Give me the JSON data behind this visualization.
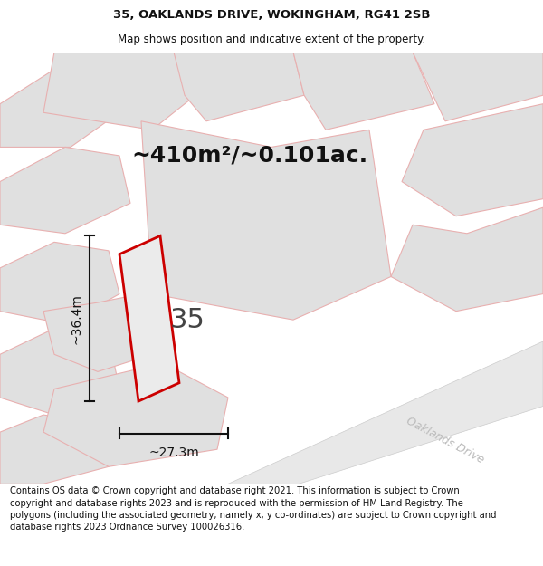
{
  "title_line1": "35, OAKLANDS DRIVE, WOKINGHAM, RG41 2SB",
  "title_line2": "Map shows position and indicative extent of the property.",
  "area_text": "~410m²/~0.101ac.",
  "label_35": "35",
  "dim_height": "~36.4m",
  "dim_width": "~27.3m",
  "road_label": "Oaklands Drive",
  "footer_text": "Contains OS data © Crown copyright and database right 2021. This information is subject to Crown copyright and database rights 2023 and is reproduced with the permission of HM Land Registry. The polygons (including the associated geometry, namely x, y co-ordinates) are subject to Crown copyright and database rights 2023 Ordnance Survey 100026316.",
  "bg_color": "#f2f2f2",
  "plot_outline": "#cc0000",
  "neighbor_fill": "#e0e0e0",
  "neighbor_outline": "#e8b0b0",
  "road_fill": "#e8e8e8",
  "dim_line_color": "#111111",
  "title_fontsize": 9.5,
  "subtitle_fontsize": 8.5,
  "area_fontsize": 18,
  "label_fontsize": 22,
  "dim_fontsize": 10,
  "footer_fontsize": 7.2,
  "road_label_fontsize": 9
}
